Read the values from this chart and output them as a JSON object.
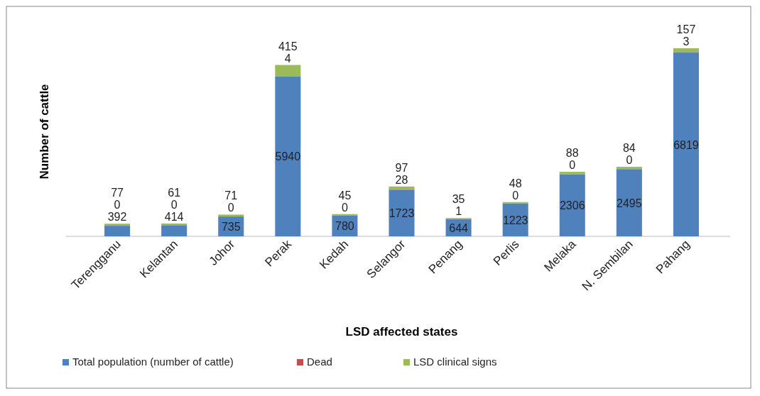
{
  "chart_data": {
    "type": "bar",
    "stacked": true,
    "xlabel": "LSD affected states",
    "ylabel": "Number of cattle",
    "categories": [
      "Terengganu",
      "Kelantan",
      "Johor",
      "Perak",
      "Kedah",
      "Selangor",
      "Penang",
      "Perlis",
      "Melaka",
      "N. Sembilan",
      "Pahang"
    ],
    "series": [
      {
        "name": "Total population (number of cattle)",
        "color": "#4f81bd",
        "values": [
          392,
          414,
          735,
          5940,
          780,
          1723,
          644,
          1223,
          2306,
          2495,
          6819
        ]
      },
      {
        "name": "Dead",
        "color": "#c0504d",
        "values": [
          0,
          0,
          0,
          4,
          0,
          28,
          1,
          0,
          0,
          0,
          3
        ]
      },
      {
        "name": "LSD clinical signs",
        "color": "#9bbb59",
        "values": [
          77,
          61,
          71,
          415,
          45,
          97,
          35,
          48,
          88,
          84,
          157
        ]
      }
    ],
    "data_labels": true,
    "legend": "bottom left"
  }
}
